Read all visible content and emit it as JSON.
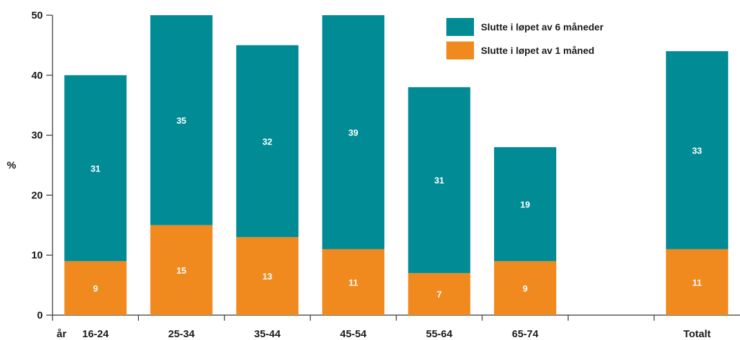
{
  "chart_data": {
    "type": "bar",
    "stacked": true,
    "title": "",
    "xlabel": "",
    "ylabel": "%",
    "x_prefix_label": "år",
    "ylim": [
      0,
      50
    ],
    "yticks": [
      0,
      10,
      20,
      30,
      40,
      50
    ],
    "categories": [
      "16-24",
      "25-34",
      "35-44",
      "45-54",
      "55-64",
      "65-74",
      "",
      "Totalt"
    ],
    "series": [
      {
        "name": "Slutte i løpet av 1 måned",
        "color": "#f08a1f",
        "values": [
          9,
          15,
          13,
          11,
          7,
          9,
          null,
          11
        ],
        "labels": [
          "9",
          "15",
          "13",
          "11",
          "7",
          "9",
          "",
          "11"
        ]
      },
      {
        "name": "Slutte i løpet av 6 måneder",
        "color": "#008b95",
        "values": [
          31,
          35,
          32,
          39,
          31,
          19,
          null,
          33
        ],
        "labels": [
          "31",
          "35",
          "32",
          "39",
          "31",
          "19",
          "",
          "33"
        ]
      }
    ],
    "grid": false,
    "legend_position": "top-right"
  }
}
